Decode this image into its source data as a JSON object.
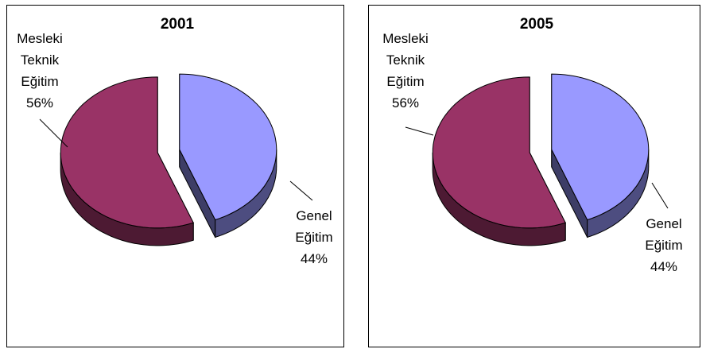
{
  "chart_data": [
    {
      "type": "pie",
      "title": "2001",
      "categories": [
        "Genel Eğitim",
        "Mesleki Teknik Eğitim"
      ],
      "values": [
        44,
        56
      ],
      "value_labels": [
        "44%",
        "56%"
      ],
      "colors": [
        "#9999ff",
        "#993366"
      ]
    },
    {
      "type": "pie",
      "title": "2005",
      "categories": [
        "Genel Eğitim",
        "Mesleki Teknik Eğitim"
      ],
      "values": [
        44,
        56
      ],
      "value_labels": [
        "44%",
        "56%"
      ],
      "colors": [
        "#9999ff",
        "#993366"
      ]
    }
  ]
}
